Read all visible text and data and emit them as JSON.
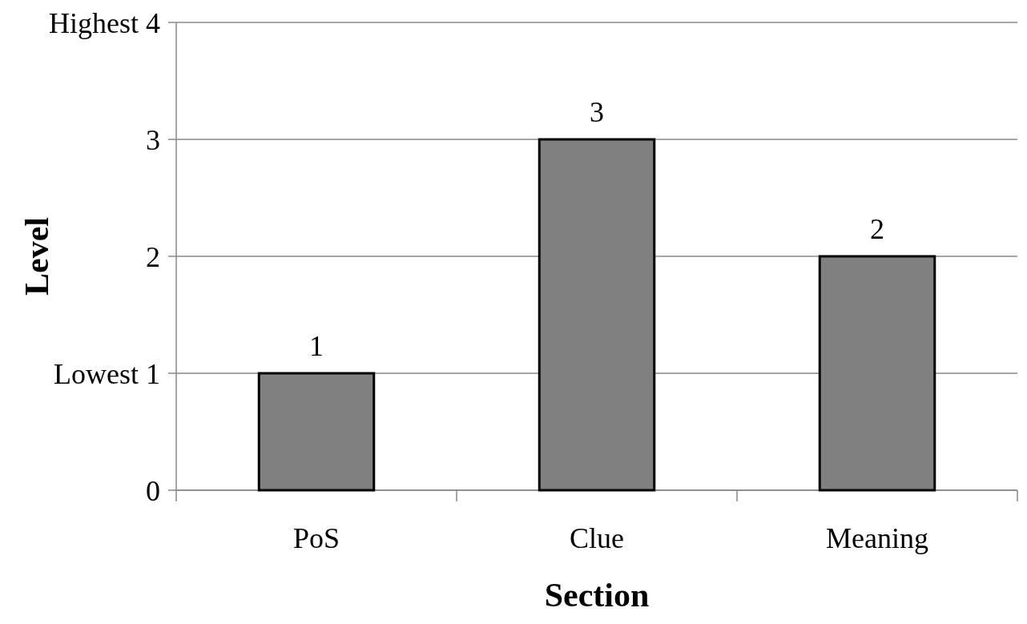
{
  "chart_data": {
    "type": "bar",
    "xlabel": "Section",
    "ylabel": "Level",
    "categories": [
      "PoS",
      "Clue",
      "Meaning"
    ],
    "values": [
      1,
      3,
      2
    ],
    "color": "#808080",
    "ylim": [
      0,
      4
    ],
    "yticks": [
      0,
      {
        "value": 1,
        "label": "Lowest 1"
      },
      2,
      3,
      {
        "value": 4,
        "label": "Highest 4"
      }
    ],
    "grid": "y",
    "data_labels": true
  }
}
